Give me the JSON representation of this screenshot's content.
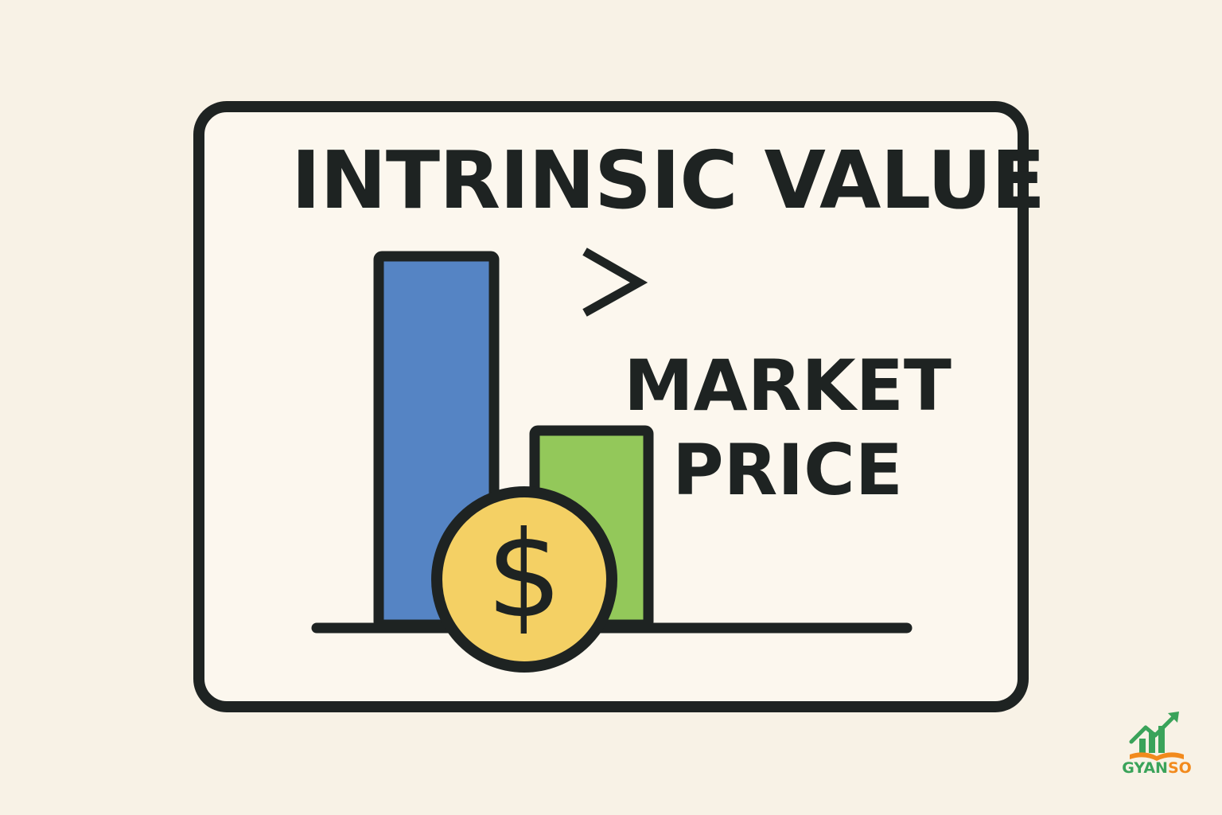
{
  "heading": "INTRINSIC VALUE",
  "operator": ">",
  "label_lines": [
    "MARKET",
    "PRICE"
  ],
  "coin_symbol": "$",
  "bars": {
    "intrinsic_value_color": "#5584c4",
    "market_price_color": "#93c85a",
    "intrinsic_value_level": 0.74,
    "market_price_level": 0.39
  },
  "coin_color": "#f4d064",
  "outline_color": "#1e2322",
  "background_color": "#f8f2e6",
  "brand": {
    "name_part1": "GYAN",
    "name_part2": "SO",
    "icon": "growth-chart-book-icon",
    "color_green": "#3aa35a",
    "color_orange": "#f28a1d"
  }
}
